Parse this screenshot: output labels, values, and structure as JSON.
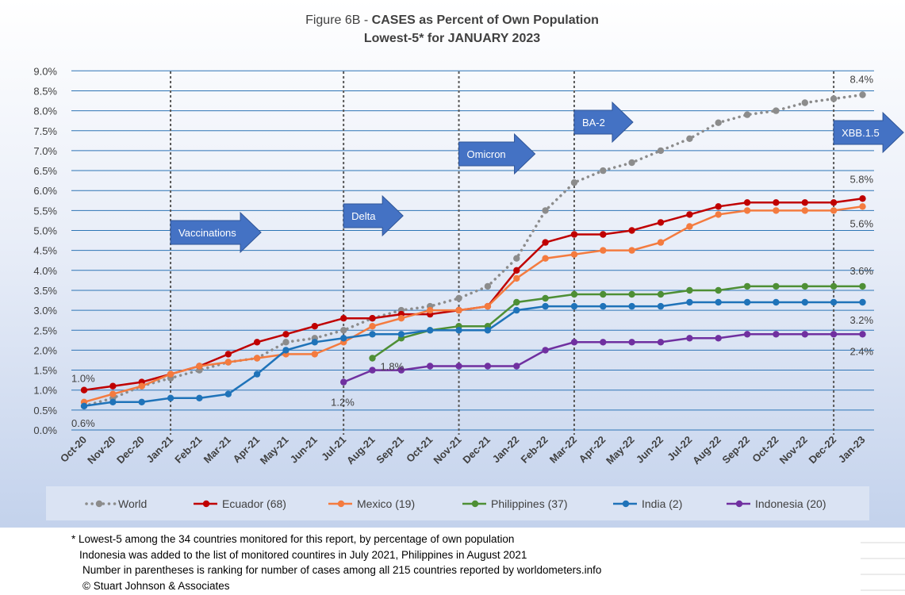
{
  "chart_data": {
    "type": "line",
    "title": "CASES as Percent of Own Population",
    "title_prefix": "Figure 6B - ",
    "subtitle": "Lowest-5* for JANUARY 2023",
    "ylim": [
      0,
      9.0
    ],
    "yticks": [
      "0.0%",
      "0.5%",
      "1.0%",
      "1.5%",
      "2.0%",
      "2.5%",
      "3.0%",
      "3.5%",
      "4.0%",
      "4.5%",
      "5.0%",
      "5.5%",
      "6.0%",
      "6.5%",
      "7.0%",
      "7.5%",
      "8.0%",
      "8.5%",
      "9.0%"
    ],
    "categories": [
      "Oct-20",
      "Nov-20",
      "Dec-20",
      "Jan-21",
      "Feb-21",
      "Mar-21",
      "Apr-21",
      "May-21",
      "Jun-21",
      "Jul-21",
      "Aug-21",
      "Sep-21",
      "Oct-21",
      "Nov-21",
      "Dec-21",
      "Jan-22",
      "Feb-22",
      "Mar-22",
      "Apr-22",
      "May-22",
      "Jun-22",
      "Jul-22",
      "Aug-22",
      "Sep-22",
      "Oct-22",
      "Nov-22",
      "Dec-22",
      "Jan-23"
    ],
    "grid": true,
    "legend_position": "bottom",
    "series": [
      {
        "name": "World",
        "color": "#8c8c8c",
        "style": "dotted",
        "values": [
          0.6,
          0.8,
          1.1,
          1.3,
          1.5,
          1.7,
          1.8,
          2.2,
          2.3,
          2.5,
          2.8,
          3.0,
          3.1,
          3.3,
          3.6,
          4.3,
          5.5,
          6.2,
          6.5,
          6.7,
          7.0,
          7.3,
          7.7,
          7.9,
          8.0,
          8.2,
          8.3,
          8.4
        ]
      },
      {
        "name": "Ecuador (68)",
        "color": "#c00000",
        "style": "solid",
        "values": [
          1.0,
          1.1,
          1.2,
          1.4,
          1.6,
          1.9,
          2.2,
          2.4,
          2.6,
          2.8,
          2.8,
          2.9,
          2.9,
          3.0,
          3.1,
          4.0,
          4.7,
          4.9,
          4.9,
          5.0,
          5.2,
          5.4,
          5.6,
          5.7,
          5.7,
          5.7,
          5.7,
          5.8
        ]
      },
      {
        "name": "Mexico (19)",
        "color": "#f47b3f",
        "style": "solid",
        "values": [
          0.7,
          0.9,
          1.1,
          1.4,
          1.6,
          1.7,
          1.8,
          1.9,
          1.9,
          2.2,
          2.6,
          2.8,
          3.0,
          3.0,
          3.1,
          3.8,
          4.3,
          4.4,
          4.5,
          4.5,
          4.7,
          5.1,
          5.4,
          5.5,
          5.5,
          5.5,
          5.5,
          5.6
        ]
      },
      {
        "name": "Philippines (37)",
        "color": "#4e8f35",
        "style": "solid",
        "values": [
          null,
          null,
          null,
          null,
          null,
          null,
          null,
          null,
          null,
          null,
          1.8,
          2.3,
          2.5,
          2.6,
          2.6,
          3.2,
          3.3,
          3.4,
          3.4,
          3.4,
          3.4,
          3.5,
          3.5,
          3.6,
          3.6,
          3.6,
          3.6,
          3.6
        ]
      },
      {
        "name": "India (2)",
        "color": "#1f73b9",
        "style": "solid",
        "values": [
          0.6,
          0.7,
          0.7,
          0.8,
          0.8,
          0.9,
          1.4,
          2.0,
          2.2,
          2.3,
          2.4,
          2.4,
          2.5,
          2.5,
          2.5,
          3.0,
          3.1,
          3.1,
          3.1,
          3.1,
          3.1,
          3.2,
          3.2,
          3.2,
          3.2,
          3.2,
          3.2,
          3.2
        ]
      },
      {
        "name": "Indonesia (20)",
        "color": "#7030a0",
        "style": "solid",
        "values": [
          null,
          null,
          null,
          null,
          null,
          null,
          null,
          null,
          null,
          1.2,
          1.5,
          1.5,
          1.6,
          1.6,
          1.6,
          1.6,
          2.0,
          2.2,
          2.2,
          2.2,
          2.2,
          2.3,
          2.3,
          2.4,
          2.4,
          2.4,
          2.4,
          2.4
        ]
      }
    ],
    "data_labels": [
      {
        "text": "1.0%",
        "series": 1,
        "index": 0
      },
      {
        "text": "0.6%",
        "series": 4,
        "index": 0
      },
      {
        "text": "1.2%",
        "series": 5,
        "index": 9
      },
      {
        "text": "1.8%",
        "series": 3,
        "index": 10
      },
      {
        "text": "8.4%",
        "series": 0,
        "index": 27
      },
      {
        "text": "5.8%",
        "series": 1,
        "index": 27
      },
      {
        "text": "5.6%",
        "series": 2,
        "index": 27
      },
      {
        "text": "3.6%",
        "series": 3,
        "index": 27
      },
      {
        "text": "3.2%",
        "series": 4,
        "index": 27
      },
      {
        "text": "2.4%",
        "series": 5,
        "index": 27
      }
    ],
    "annotations": [
      {
        "text": "Vaccinations",
        "category": "Jan-21"
      },
      {
        "text": "Delta",
        "category": "Jul-21"
      },
      {
        "text": "Omicron",
        "category": "Nov-21"
      },
      {
        "text": "BA-2",
        "category": "Mar-22"
      },
      {
        "text": "XBB.1.5",
        "category": "Dec-22"
      }
    ],
    "arrow_color": "#4472c4"
  },
  "footnotes": {
    "line1": "* Lowest-5 among the 34 countries monitored for this report, by percentage of own population",
    "line2": "Indonesia was added to the list of monitored countires in July 2021, Philippines in August 2021",
    "line3": "Number in parentheses is ranking for number of cases among all 215 countries reported by worldometers.info",
    "line4": "© Stuart Johnson & Associates"
  }
}
